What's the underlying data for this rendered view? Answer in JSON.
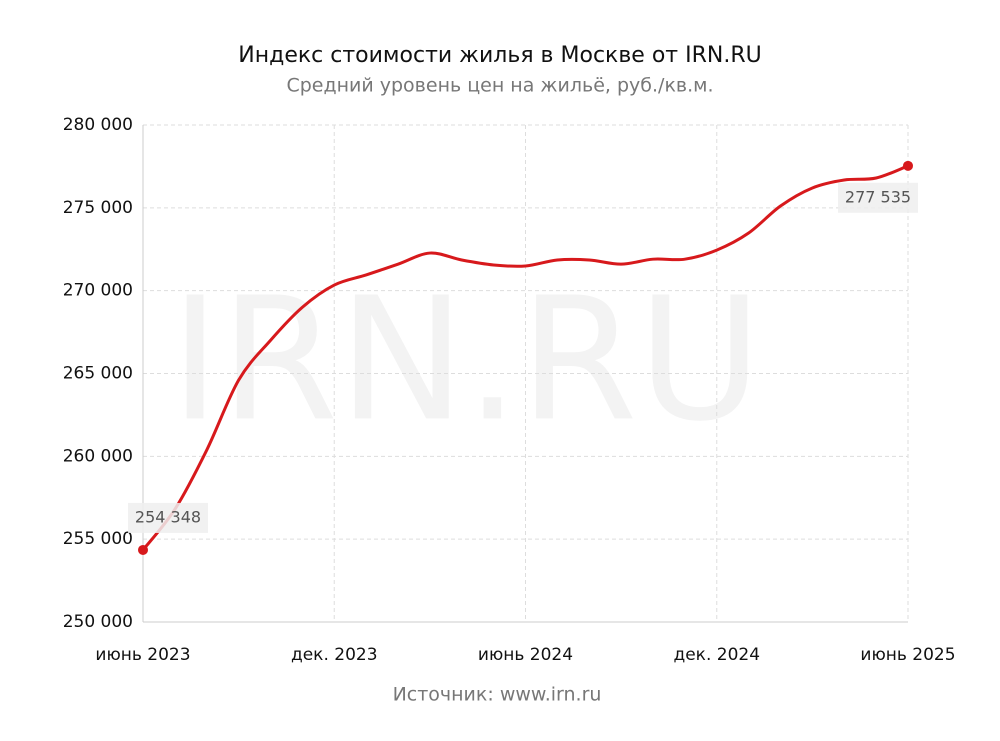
{
  "chart_data": {
    "type": "line",
    "title": "Индекс стоимости жилья в Москве от IRN.RU",
    "subtitle": "Средний уровень цен на жильё, руб./кв.м.",
    "watermark": "IRN.RU",
    "source": "Источник: www.irn.ru",
    "categories": [
      "июнь 2023",
      null,
      null,
      null,
      null,
      null,
      "дек. 2023",
      null,
      null,
      null,
      null,
      null,
      "июнь 2024",
      null,
      null,
      null,
      null,
      null,
      "дек. 2024",
      null,
      null,
      null,
      null,
      null,
      "июнь 2025"
    ],
    "series": [
      {
        "color": "#d7191c",
        "values": [
          254348,
          256800,
          260380,
          264600,
          267000,
          269000,
          270340,
          270950,
          271600,
          272270,
          271850,
          271550,
          271490,
          271850,
          271850,
          271600,
          271900,
          271900,
          272450,
          273480,
          275110,
          276200,
          276680,
          276800,
          277535
        ],
        "value_labels": [
          "254 348",
          null,
          null,
          null,
          null,
          null,
          null,
          null,
          null,
          null,
          null,
          null,
          null,
          null,
          null,
          null,
          null,
          null,
          null,
          null,
          null,
          null,
          null,
          null,
          "277 535"
        ]
      }
    ],
    "ylim": [
      250000,
      280000
    ],
    "yticks": [
      {
        "value": 250000,
        "label": "250 000"
      },
      {
        "value": 255000,
        "label": "255 000"
      },
      {
        "value": 260000,
        "label": "260 000"
      },
      {
        "value": 265000,
        "label": "265 000"
      },
      {
        "value": 270000,
        "label": "270 000"
      },
      {
        "value": 275000,
        "label": "275 000"
      },
      {
        "value": 280000,
        "label": "280 000"
      }
    ],
    "grid": true
  }
}
